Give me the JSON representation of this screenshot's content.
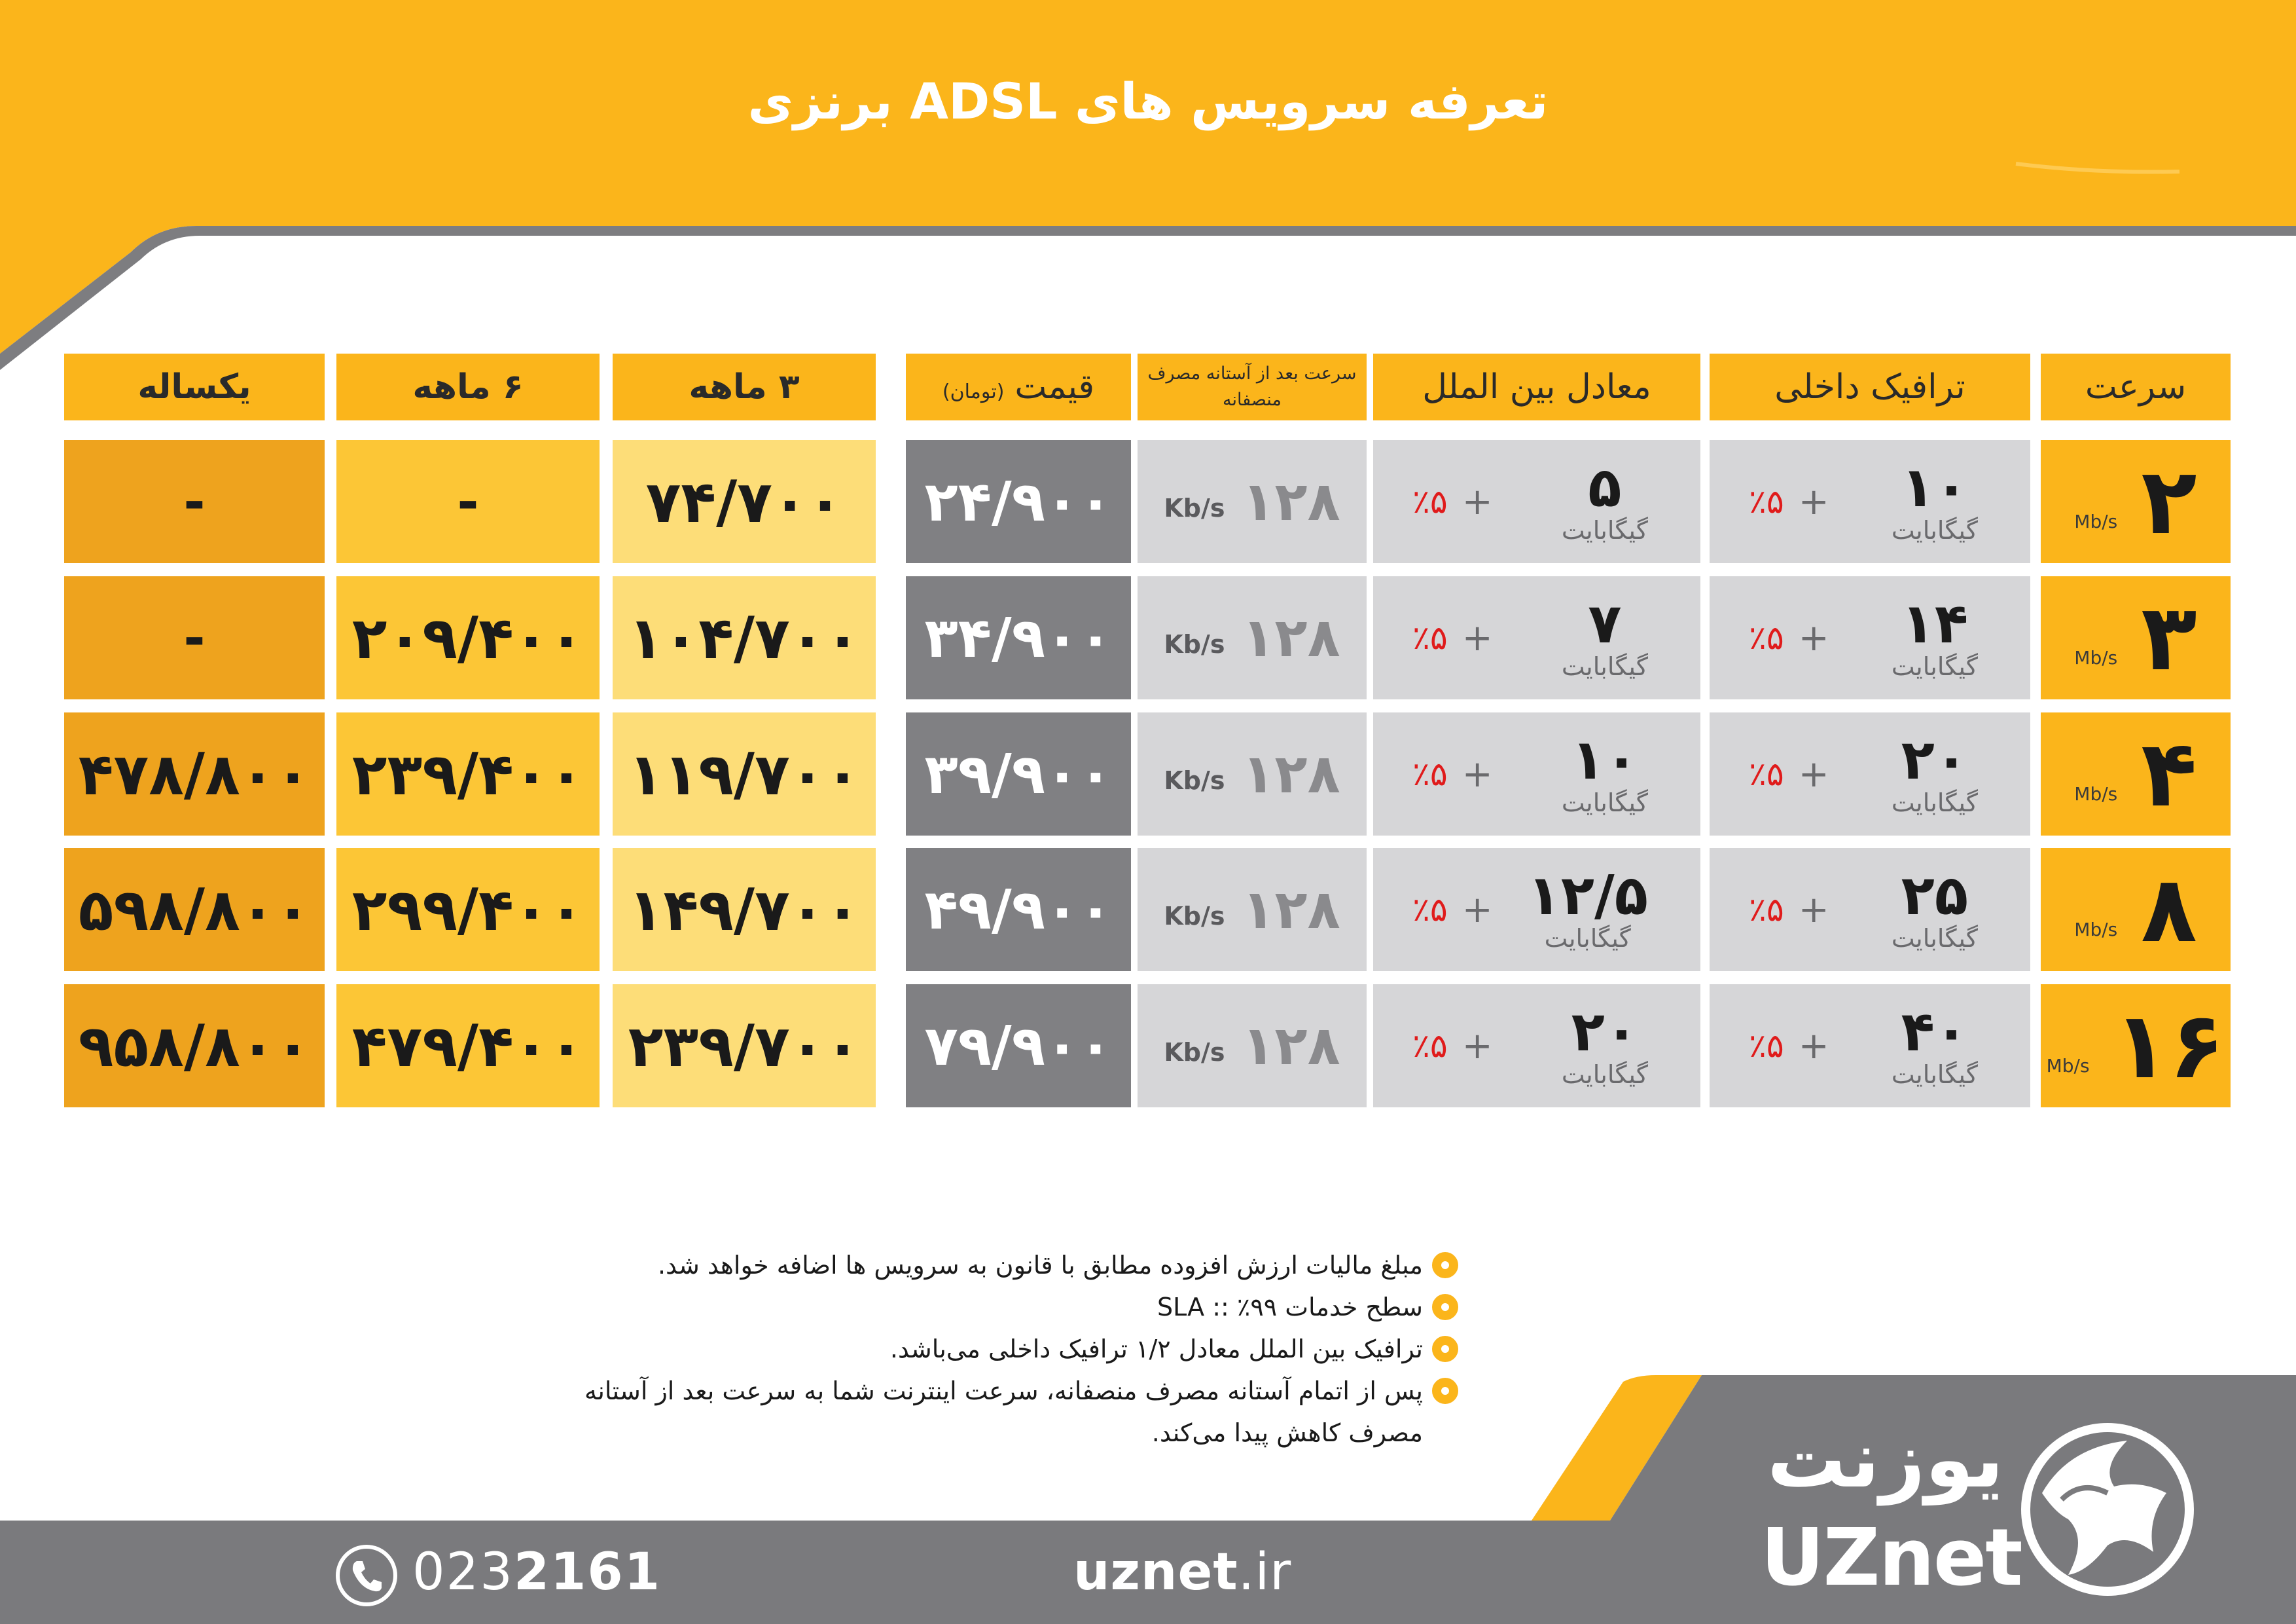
{
  "title": "تعرفه سرویس های ADSL برنزی",
  "colors": {
    "accent": "#fbb51b",
    "footer": "#7a7a7d",
    "price_cell": "#808083",
    "percent": "#e01b1b"
  },
  "table": {
    "headers": {
      "speed": "سرعت",
      "domestic": "ترافیک داخلی",
      "international": "معادل بین الملل",
      "after_threshold": "سرعت بعد از آستانه مصرف منصفانه",
      "price": "قیمت",
      "price_unit": "(تومان)",
      "m3": "۳ ماهه",
      "m6": "۶ ماهه",
      "m12": "یکساله"
    },
    "unit_gb": "گیگابایت",
    "speed_unit": "Mb/s",
    "after_unit": "Kb/s",
    "plus": "+",
    "rows": [
      {
        "speed": "۲",
        "domestic": "۱۰",
        "domestic_pct": "٪۵",
        "intl": "۵",
        "intl_pct": "٪۵",
        "after": "۱۲۸",
        "price": "۲۴/۹۰۰",
        "m3": "۷۴/۷۰۰",
        "m6": "-",
        "m12": "-"
      },
      {
        "speed": "۳",
        "domestic": "۱۴",
        "domestic_pct": "٪۵",
        "intl": "۷",
        "intl_pct": "٪۵",
        "after": "۱۲۸",
        "price": "۳۴/۹۰۰",
        "m3": "۱۰۴/۷۰۰",
        "m6": "۲۰۹/۴۰۰",
        "m12": "-"
      },
      {
        "speed": "۴",
        "domestic": "۲۰",
        "domestic_pct": "٪۵",
        "intl": "۱۰",
        "intl_pct": "٪۵",
        "after": "۱۲۸",
        "price": "۳۹/۹۰۰",
        "m3": "۱۱۹/۷۰۰",
        "m6": "۲۳۹/۴۰۰",
        "m12": "۴۷۸/۸۰۰"
      },
      {
        "speed": "۸",
        "domestic": "۲۵",
        "domestic_pct": "٪۵",
        "intl": "۱۲/۵",
        "intl_pct": "٪۵",
        "after": "۱۲۸",
        "price": "۴۹/۹۰۰",
        "m3": "۱۴۹/۷۰۰",
        "m6": "۲۹۹/۴۰۰",
        "m12": "۵۹۸/۸۰۰"
      },
      {
        "speed": "۱۶",
        "domestic": "۴۰",
        "domestic_pct": "٪۵",
        "intl": "۲۰",
        "intl_pct": "٪۵",
        "after": "۱۲۸",
        "price": "۷۹/۹۰۰",
        "m3": "۲۳۹/۷۰۰",
        "m6": "۴۷۹/۴۰۰",
        "m12": "۹۵۸/۸۰۰"
      }
    ]
  },
  "notes": [
    "مبلغ مالیات ارزش افزوده مطابق با قانون به سرویس ها اضافه خواهد شد.",
    "سطح خدمات SLA :: ٪۹۹",
    "ترافیک بین الملل معادل ۱/۲ ترافیک داخلی می‌باشد.",
    "پس از اتمام آستانه مصرف منصفانه، سرعت اینترنت شما به سرعت بعد از آستانه مصرف کاهش پیدا می‌کند."
  ],
  "footer": {
    "phone_prefix": "023",
    "phone_main": "2161",
    "website_domain": "uznet",
    "website_tld": ".ir",
    "brand_fa": "یوزنت",
    "brand_en": "UZnet",
    "phone_icon": "phone-icon",
    "logo_icon": "globe-logo-icon"
  }
}
